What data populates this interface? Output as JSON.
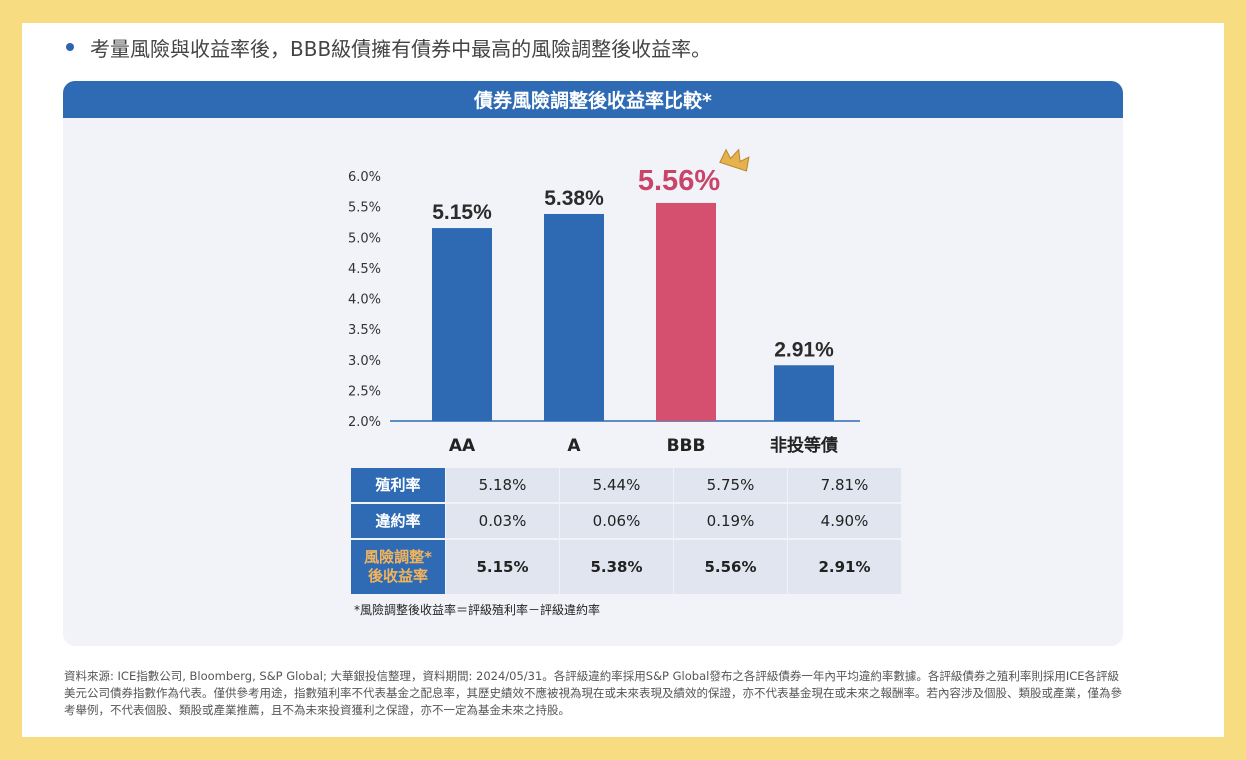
{
  "bullet_text": "考量風險與收益率後，BBB級債擁有債券中最高的風險調整後收益率。",
  "card_title": "債券風險調整後收益率比較*",
  "chart_data": {
    "type": "bar",
    "title": "債券風險調整後收益率比較*",
    "categories": [
      "AA",
      "A",
      "BBB",
      "非投等債"
    ],
    "values": [
      5.15,
      5.38,
      5.56,
      2.91
    ],
    "value_labels": [
      "5.15%",
      "5.38%",
      "5.56%",
      "2.91%"
    ],
    "highlight_index": 2,
    "yticks": [
      "2.0%",
      "2.5%",
      "3.0%",
      "3.5%",
      "4.0%",
      "4.5%",
      "5.0%",
      "5.5%",
      "6.0%"
    ],
    "ylim": [
      2.0,
      6.0
    ],
    "grid": false,
    "colors": {
      "bar": "#2e69b3",
      "highlight": "#d4506e",
      "highlight_label": "#c9446a",
      "axis": "#2e6bb4"
    },
    "annotation_icon": "crown-icon"
  },
  "table": {
    "rows": [
      {
        "header": "殖利率",
        "values": [
          "5.18%",
          "5.44%",
          "5.75%",
          "7.81%"
        ]
      },
      {
        "header": "違約率",
        "values": [
          "0.03%",
          "0.06%",
          "0.19%",
          "4.90%"
        ]
      },
      {
        "header_line1": "風險調整*",
        "header_line2": "後收益率",
        "values": [
          "5.15%",
          "5.38%",
          "5.56%",
          "2.91%"
        ]
      }
    ]
  },
  "footnote": "*風險調整後收益率＝評級殖利率－評級違約率",
  "sources": "資料來源: ICE指數公司, Bloomberg, S&P Global; 大華銀投信整理，資料期間: 2024/05/31。各評級違約率採用S&P Global發布之各評級債券一年內平均違約率數據。各評級債券之殖利率則採用ICE各評級美元公司債券指數作為代表。僅供參考用途，指數殖利率不代表基金之配息率，其歷史績效不應被視為現在或未來表現及績效的保證，亦不代表基金現在或未來之報酬率。若內容涉及個股、類股或產業，僅為參考舉例，不代表個股、類股或產業推薦，且不為未來投資獲利之保證，亦不一定為基金未來之持股。"
}
